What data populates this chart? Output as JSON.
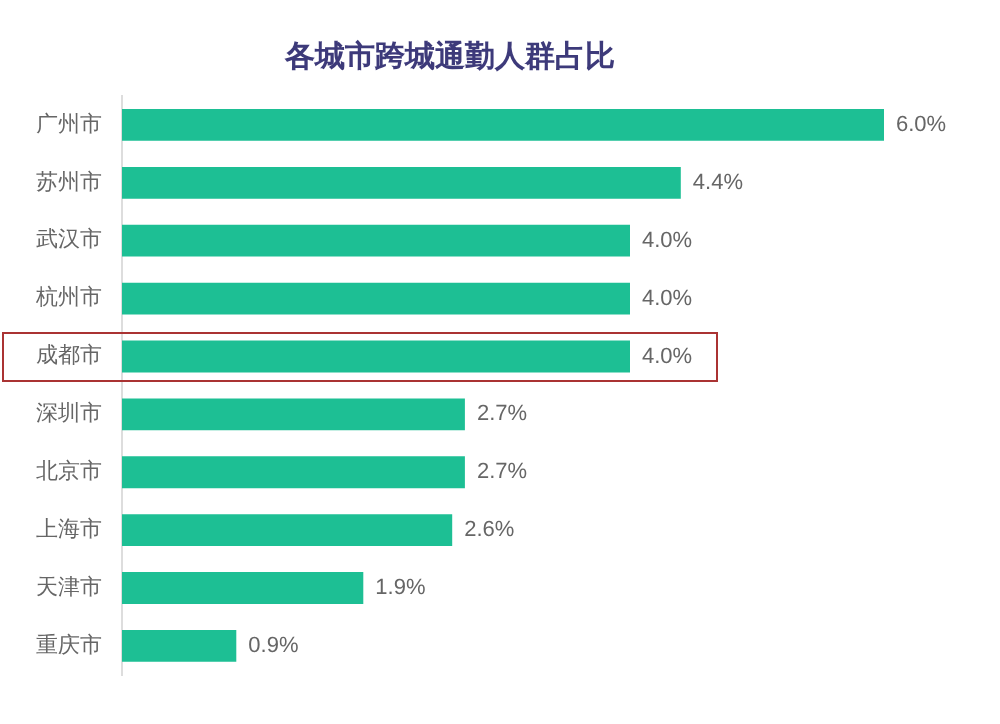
{
  "chart_data": {
    "type": "bar",
    "orientation": "horizontal",
    "title": "各城市跨城通勤人群占比",
    "categories": [
      "广州市",
      "苏州市",
      "武汉市",
      "杭州市",
      "成都市",
      "深圳市",
      "北京市",
      "上海市",
      "天津市",
      "重庆市"
    ],
    "values": [
      6.0,
      4.4,
      4.0,
      4.0,
      4.0,
      2.7,
      2.7,
      2.6,
      1.9,
      0.9
    ],
    "value_labels": [
      "6.0%",
      "4.4%",
      "4.0%",
      "4.0%",
      "4.0%",
      "2.7%",
      "2.7%",
      "2.6%",
      "1.9%",
      "0.9%"
    ],
    "color": "#1dbf94",
    "grid": false,
    "legend": false
  }
}
